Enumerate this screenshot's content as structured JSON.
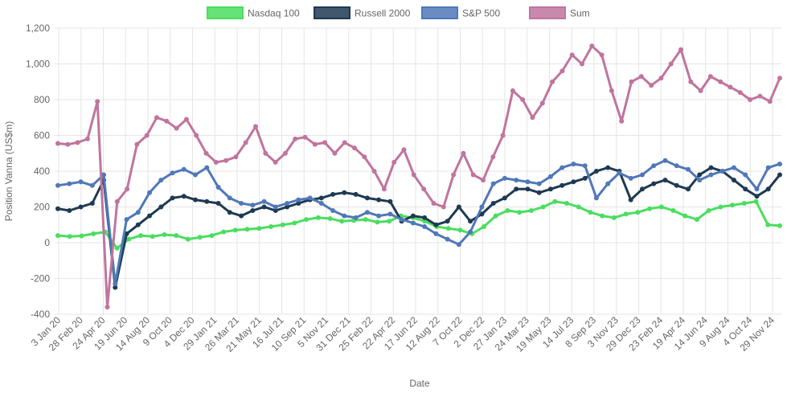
{
  "chart_data": {
    "type": "line",
    "title": "",
    "xlabel": "Date",
    "ylabel": "Position Vanna (US$m)",
    "ylim": [
      -400,
      1200
    ],
    "yticks": [
      "1,200",
      "1,000",
      "800",
      "600",
      "400",
      "200",
      "0",
      "-200",
      "-400"
    ],
    "ytick_values": [
      1200,
      1000,
      800,
      600,
      400,
      200,
      0,
      -200,
      -400
    ],
    "grid": true,
    "legend_position": "top-center",
    "x_tick_labels": [
      "3 Jan 20",
      "28 Feb 20",
      "24 Apr 20",
      "19 Jun 20",
      "14 Aug 20",
      "9 Oct 20",
      "4 Dec 20",
      "29 Jan 21",
      "26 Mar 21",
      "21 May 21",
      "16 Jul 21",
      "10 Sep 21",
      "5 Nov 21",
      "31 Dec 21",
      "25 Feb 22",
      "22 Apr 22",
      "17 Jun 22",
      "12 Aug 22",
      "7 Oct 22",
      "2 Dec 22",
      "27 Jan 23",
      "24 Mar 23",
      "19 May 23",
      "14 Jul 23",
      "8 Sep 23",
      "3 Nov 23",
      "29 Dec 23",
      "23 Feb 24",
      "19 Apr 24",
      "14 Jun 24",
      "9 Aug 24",
      "4 Oct 24",
      "29 Nov 24"
    ],
    "series": [
      {
        "name": "Nasdaq 100",
        "color": "#4ade5f",
        "values": [
          40,
          35,
          38,
          50,
          60,
          -30,
          20,
          40,
          35,
          45,
          40,
          20,
          30,
          40,
          60,
          70,
          75,
          80,
          90,
          100,
          110,
          130,
          140,
          135,
          120,
          125,
          130,
          115,
          120,
          150,
          140,
          120,
          90,
          80,
          70,
          50,
          90,
          150,
          180,
          170,
          180,
          200,
          230,
          220,
          200,
          170,
          150,
          140,
          160,
          170,
          190,
          200,
          180,
          150,
          130,
          180,
          200,
          210,
          220,
          230,
          100,
          95
        ]
      },
      {
        "name": "Russell 2000",
        "color": "#1e3a52",
        "values": [
          190,
          180,
          200,
          220,
          350,
          -250,
          50,
          100,
          150,
          200,
          250,
          260,
          240,
          230,
          220,
          170,
          150,
          180,
          200,
          180,
          200,
          220,
          240,
          250,
          270,
          280,
          270,
          250,
          240,
          230,
          120,
          150,
          140,
          100,
          120,
          200,
          120,
          160,
          220,
          250,
          300,
          300,
          280,
          300,
          320,
          340,
          360,
          400,
          420,
          400,
          240,
          300,
          330,
          350,
          320,
          300,
          380,
          420,
          400,
          350,
          300,
          260,
          300,
          380
        ]
      },
      {
        "name": "S&P 500",
        "color": "#5078b8",
        "values": [
          320,
          330,
          340,
          320,
          380,
          -230,
          130,
          170,
          280,
          350,
          390,
          410,
          380,
          420,
          310,
          250,
          220,
          210,
          230,
          200,
          220,
          240,
          250,
          220,
          180,
          150,
          140,
          170,
          150,
          160,
          130,
          110,
          90,
          50,
          20,
          -10,
          60,
          200,
          330,
          360,
          350,
          340,
          330,
          370,
          420,
          440,
          430,
          250,
          330,
          390,
          360,
          380,
          430,
          460,
          430,
          410,
          350,
          380,
          400,
          420,
          380,
          300,
          420,
          440
        ]
      },
      {
        "name": "Sum",
        "color": "#c0749e",
        "values": [
          555,
          550,
          560,
          580,
          790,
          -360,
          230,
          300,
          550,
          600,
          700,
          680,
          640,
          690,
          600,
          500,
          450,
          460,
          480,
          560,
          650,
          500,
          450,
          500,
          580,
          590,
          550,
          560,
          500,
          560,
          530,
          480,
          400,
          300,
          450,
          520,
          380,
          300,
          220,
          200,
          380,
          500,
          380,
          350,
          480,
          600,
          850,
          800,
          700,
          780,
          900,
          960,
          1050,
          1000,
          1100,
          1050,
          850,
          680,
          900,
          930,
          880,
          920,
          1000,
          1080,
          900,
          850,
          930,
          900,
          870,
          840,
          800,
          820,
          790,
          920
        ]
      }
    ]
  }
}
